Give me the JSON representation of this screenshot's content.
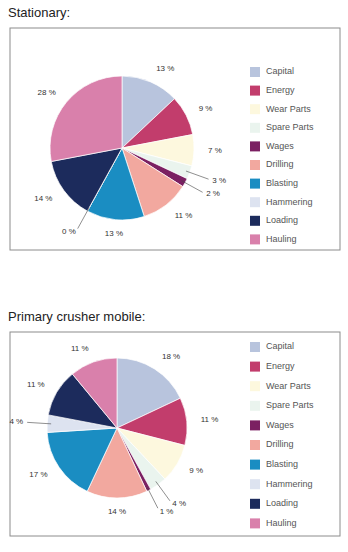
{
  "chart_data": [
    {
      "type": "pie",
      "title": "Stationary:",
      "categories": [
        "Capital",
        "Energy",
        "Wear Parts",
        "Spare Parts",
        "Wages",
        "Drilling",
        "Blasting",
        "Hammering",
        "Loading",
        "Hauling"
      ],
      "values": [
        13,
        9,
        7,
        3,
        2,
        11,
        13,
        0,
        14,
        28
      ],
      "value_labels": [
        "13 %",
        "9 %",
        "7 %",
        "3 %",
        "2 %",
        "11 %",
        "13 %",
        "0 %",
        "14 %",
        "28 %"
      ],
      "colors": [
        "#b8c4dd",
        "#c23d6c",
        "#fdf8de",
        "#eaf4ee",
        "#7b2062",
        "#f2a89f",
        "#1a8dc2",
        "#dde3f0",
        "#1c2b5c",
        "#d980ab"
      ],
      "data_labels": true,
      "legend": "right"
    },
    {
      "type": "pie",
      "title": "Primary crusher mobile:",
      "categories": [
        "Capital",
        "Energy",
        "Wear Parts",
        "Spare Parts",
        "Wages",
        "Drilling",
        "Blasting",
        "Hammering",
        "Loading",
        "Hauling"
      ],
      "values": [
        18,
        11,
        9,
        4,
        1,
        14,
        17,
        4,
        11,
        11
      ],
      "value_labels": [
        "18 %",
        "11 %",
        "9 %",
        "4 %",
        "1 %",
        "14 %",
        "17 %",
        "4 %",
        "11 %",
        "11 %"
      ],
      "colors": [
        "#b8c4dd",
        "#c23d6c",
        "#fdf8de",
        "#eaf4ee",
        "#7b2062",
        "#f2a89f",
        "#1a8dc2",
        "#dde3f0",
        "#1c2b5c",
        "#d980ab"
      ],
      "data_labels": true,
      "legend": "right"
    }
  ]
}
